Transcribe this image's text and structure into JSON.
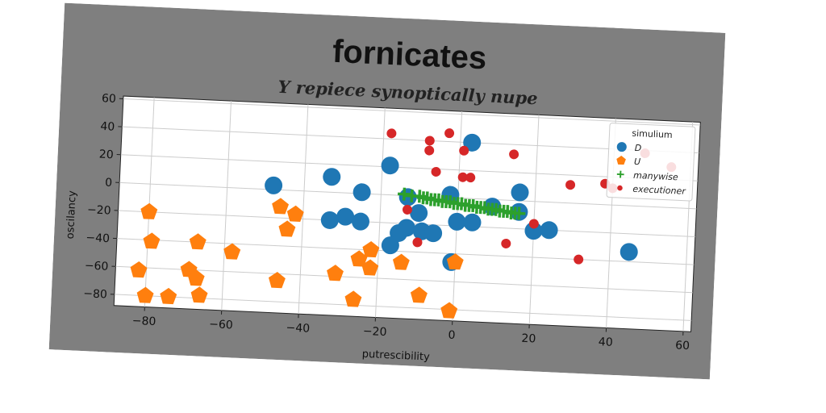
{
  "chart_data": {
    "type": "scatter",
    "suptitle": "fornicates",
    "title": "Y repiece synoptically nupe",
    "xlabel": "putrescibility",
    "ylabel": "oscilancy",
    "xlim": [
      -88,
      62
    ],
    "ylim": [
      -88,
      62
    ],
    "xticks": [
      -80,
      -60,
      -40,
      -20,
      0,
      20,
      40,
      60
    ],
    "yticks": [
      -80,
      -60,
      -40,
      -20,
      0,
      20,
      40,
      60
    ],
    "xtick_labels": [
      "−80",
      "−60",
      "−40",
      "−20",
      "0",
      "20",
      "40",
      "60"
    ],
    "ytick_labels": [
      "−80",
      "−60",
      "−40",
      "−20",
      "0",
      "20",
      "40",
      "60"
    ],
    "grid": true,
    "legend": {
      "title": "simulium",
      "placement": "top-right"
    },
    "colors": {
      "figure_bg": "#7f7f7f",
      "axes_bg": "#ffffff",
      "grid": "#cccccc"
    },
    "series": [
      {
        "name": "D",
        "marker": "circle",
        "color": "#1f77b4",
        "points": [
          [
            -48,
            3
          ],
          [
            -33,
            11
          ],
          [
            -25,
            1
          ],
          [
            -18,
            21
          ],
          [
            -13,
            -1
          ],
          [
            -10,
            -12
          ],
          [
            -13,
            -23
          ],
          [
            -9,
            -25
          ],
          [
            -6,
            -26
          ],
          [
            -15,
            -27
          ],
          [
            -17,
            -36
          ],
          [
            -29,
            -17
          ],
          [
            -33,
            -20
          ],
          [
            -25,
            -20
          ],
          [
            0,
            -17
          ],
          [
            4,
            -17
          ],
          [
            9,
            -5
          ],
          [
            16,
            -8
          ],
          [
            16,
            6
          ],
          [
            3,
            40
          ],
          [
            -1,
            -46
          ],
          [
            20,
            -21
          ],
          [
            24,
            -20
          ],
          [
            45,
            -33
          ],
          [
            -2,
            2
          ]
        ]
      },
      {
        "name": "U",
        "marker": "pentagon",
        "color": "#ff7f0e",
        "points": [
          [
            -80,
            -20
          ],
          [
            -79,
            -41
          ],
          [
            -82,
            -62
          ],
          [
            -80,
            -80
          ],
          [
            -74,
            -80
          ],
          [
            -69,
            -60
          ],
          [
            -67,
            -66
          ],
          [
            -66,
            -78
          ],
          [
            -67,
            -40
          ],
          [
            -58,
            -46
          ],
          [
            -46,
            -12
          ],
          [
            -42,
            -17
          ],
          [
            -44,
            -28
          ],
          [
            -46,
            -65
          ],
          [
            -31,
            -58
          ],
          [
            -25,
            -47
          ],
          [
            -22,
            -40
          ],
          [
            -22,
            -53
          ],
          [
            -26,
            -76
          ],
          [
            -14,
            -48
          ],
          [
            -9,
            -71
          ],
          [
            0,
            -46
          ],
          [
            -1,
            -81
          ]
        ]
      },
      {
        "name": "manywise",
        "marker": "plus",
        "color": "#2ca02c",
        "points": [
          [
            -14,
            1
          ],
          [
            -12,
            0
          ],
          [
            -10,
            0
          ],
          [
            -9,
            -1
          ],
          [
            -8,
            -1
          ],
          [
            -7,
            -2
          ],
          [
            -6,
            -2
          ],
          [
            -5,
            -2
          ],
          [
            -4,
            -3
          ],
          [
            -3,
            -3
          ],
          [
            -2,
            -3
          ],
          [
            -1,
            -4
          ],
          [
            0,
            -4
          ],
          [
            1,
            -4
          ],
          [
            2,
            -5
          ],
          [
            3,
            -5
          ],
          [
            4,
            -5
          ],
          [
            5,
            -6
          ],
          [
            6,
            -6
          ],
          [
            7,
            -6
          ],
          [
            8,
            -7
          ],
          [
            9,
            -7
          ],
          [
            10,
            -7
          ],
          [
            11,
            -8
          ],
          [
            12,
            -8
          ],
          [
            13,
            -8
          ],
          [
            14,
            -9
          ],
          [
            15,
            -9
          ],
          [
            16,
            -9
          ]
        ]
      },
      {
        "name": "executioner",
        "marker": "circle-small",
        "color": "#d62728",
        "points": [
          [
            -18,
            44
          ],
          [
            -8,
            40
          ],
          [
            -3,
            46
          ],
          [
            -8,
            33
          ],
          [
            1,
            34
          ],
          [
            -6,
            18
          ],
          [
            1,
            15
          ],
          [
            3,
            15
          ],
          [
            14,
            33
          ],
          [
            29,
            13
          ],
          [
            38,
            15
          ],
          [
            48,
            38
          ],
          [
            55,
            29
          ],
          [
            -13,
            -10
          ],
          [
            -10,
            -33
          ],
          [
            13,
            -31
          ],
          [
            20,
            -16
          ],
          [
            32,
            -40
          ],
          [
            40,
            12
          ]
        ]
      }
    ]
  }
}
